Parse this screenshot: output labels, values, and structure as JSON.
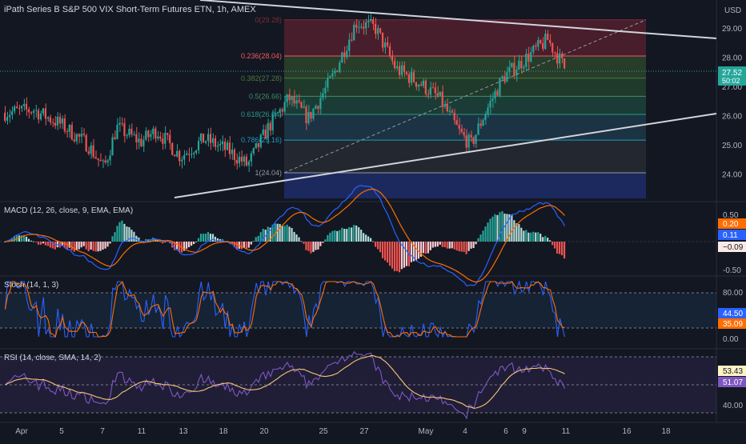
{
  "header": {
    "title": "iPath Series B S&P 500 VIX Short-Term Futures ETN, 1h, AMEX",
    "currency": "USD"
  },
  "colors": {
    "background": "#131722",
    "up": "#26a69a",
    "down": "#ef5350",
    "grid": "#1e222d",
    "axis_text": "#b2b5be",
    "trendline": "#d1d4dc",
    "macd_line": "#2962ff",
    "signal_line": "#ff6d00",
    "stoch_k": "#2962ff",
    "stoch_d": "#ff6d00",
    "rsi_line": "#7e57c2",
    "rsi_ma": "#f7c675"
  },
  "price_axis": {
    "ticks": [
      "29.00",
      "28.00",
      "27.00",
      "26.00",
      "25.00",
      "24.00"
    ],
    "last_price": "27.52",
    "countdown": "50:02"
  },
  "fibonacci": [
    {
      "label": "0(29.28)",
      "level": 29.28,
      "color": "#7a2e36"
    },
    {
      "label": "0.236(28.04)",
      "level": 28.04,
      "color": "#f15b5b"
    },
    {
      "label": "0.382(27.28)",
      "level": 27.28,
      "color": "#4c7a3a"
    },
    {
      "label": "0.5(26.66)",
      "level": 26.66,
      "color": "#3f8f63"
    },
    {
      "label": "0.618(26.04)",
      "level": 26.04,
      "color": "#2a9a8a"
    },
    {
      "label": "0.786(25.16)",
      "level": 25.16,
      "color": "#1b9fbd"
    },
    {
      "label": "1(24.04)",
      "level": 24.04,
      "color": "#9598a1"
    }
  ],
  "macd": {
    "title": "MACD (12, 26, close, 9, EMA, EMA)",
    "axis_ticks": [
      "0.50",
      "-0.50"
    ],
    "badges": [
      {
        "value": "0.20",
        "color": "#ff6d00"
      },
      {
        "value": "0.11",
        "color": "#2962ff"
      },
      {
        "value": "−0.09",
        "color": "#fbe9e7"
      }
    ]
  },
  "stoch": {
    "title": "Stoch (14, 1, 3)",
    "axis_ticks": [
      "80.00",
      "0.00"
    ],
    "badges": [
      {
        "value": "44.50",
        "color": "#2962ff"
      },
      {
        "value": "35.09",
        "color": "#ff6d00"
      }
    ]
  },
  "rsi": {
    "title": "RSI (14, close, SMA, 14, 2)",
    "axis_ticks": [
      "40.00"
    ],
    "badges": [
      {
        "value": "53.43",
        "color": "#fff3c4"
      },
      {
        "value": "51.07",
        "color": "#7e57c2"
      }
    ]
  },
  "time_axis": {
    "labels": [
      "Apr",
      "5",
      "7",
      "11",
      "13",
      "18",
      "20",
      "25",
      "27",
      "May",
      "4",
      "6",
      "9",
      "11",
      "16",
      "18"
    ]
  }
}
